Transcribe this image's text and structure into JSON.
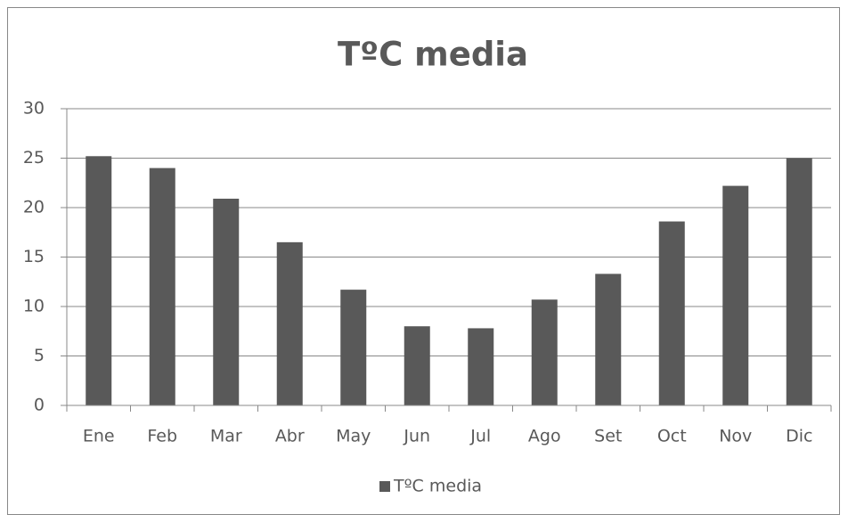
{
  "chart_data": {
    "type": "bar",
    "title": "TºC media",
    "categories": [
      "Ene",
      "Feb",
      "Mar",
      "Abr",
      "May",
      "Jun",
      "Jul",
      "Ago",
      "Set",
      "Oct",
      "Nov",
      "Dic"
    ],
    "series": [
      {
        "name": "TºC media",
        "color": "#595959",
        "values": [
          25.2,
          24.0,
          20.9,
          16.5,
          11.7,
          8.0,
          7.8,
          10.7,
          13.3,
          18.6,
          22.2,
          25.0
        ]
      }
    ],
    "ylim": [
      0,
      30
    ],
    "yticks": [
      0,
      5,
      10,
      15,
      20,
      25,
      30
    ],
    "grid": true,
    "legend": "bottom"
  }
}
